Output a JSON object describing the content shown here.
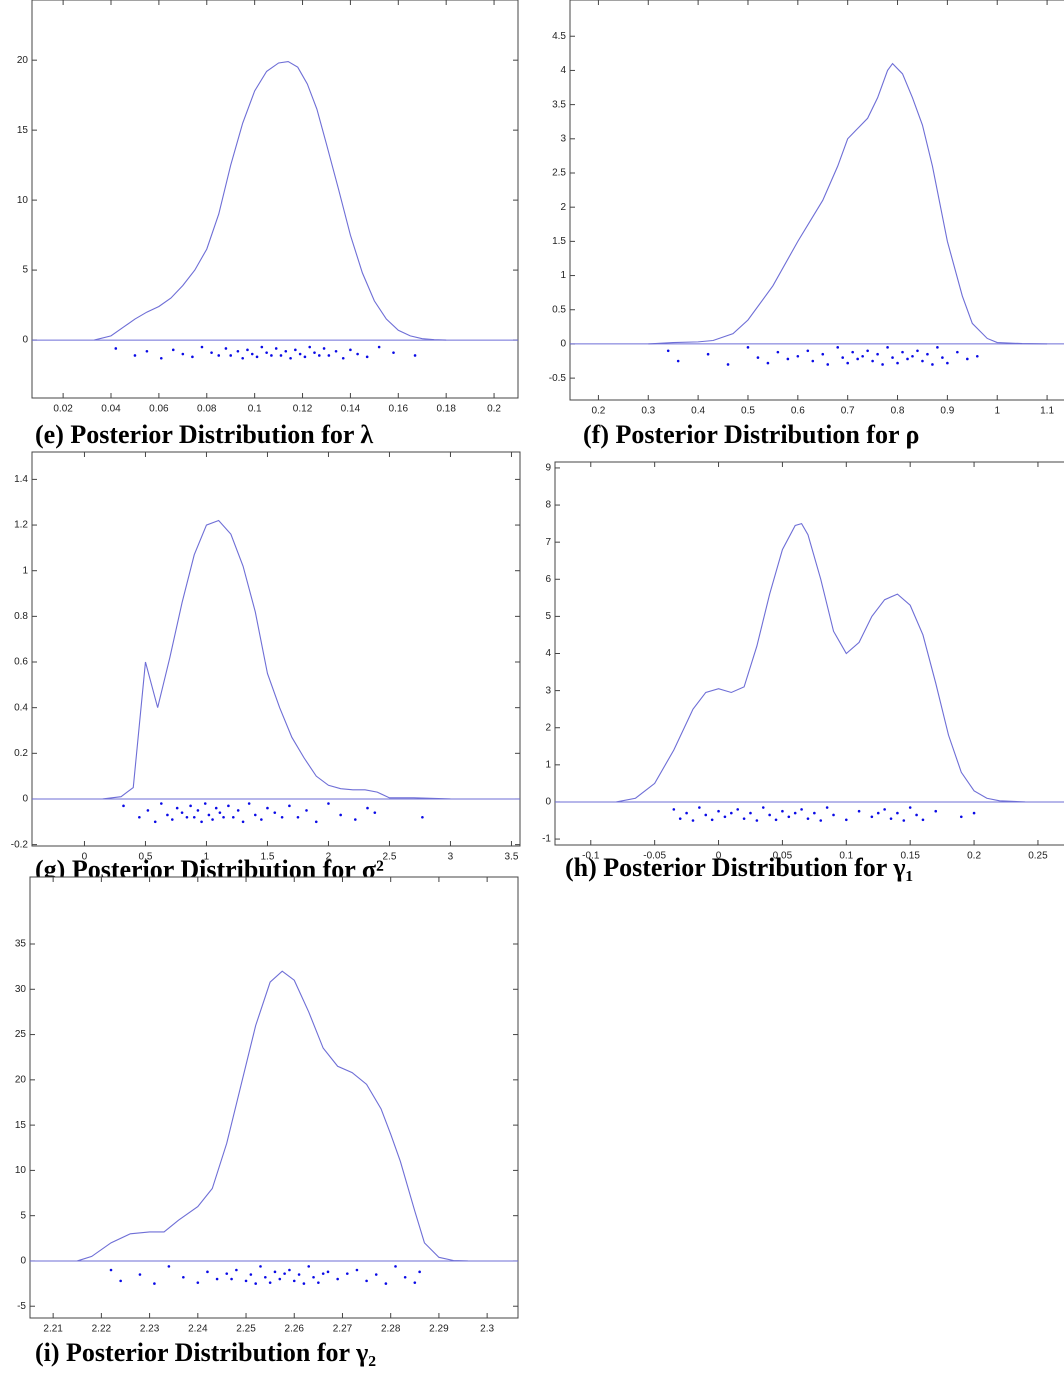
{
  "chart_data": [
    {
      "type": "density",
      "caption": "(e) Posterior Distribution for λ",
      "xlim": [
        0.007,
        0.21
      ],
      "ylim": [
        -4.14,
        24.3
      ],
      "xticks": [
        0.02,
        0.04,
        0.06,
        0.08,
        0.1,
        0.12,
        0.14,
        0.16,
        0.18,
        0.2
      ],
      "yticks": [
        0,
        5,
        10,
        15,
        20
      ],
      "color": "#6e6ed6",
      "point_color": "#0a0ae6",
      "x": [
        0.033,
        0.04,
        0.045,
        0.05,
        0.055,
        0.06,
        0.065,
        0.07,
        0.075,
        0.08,
        0.085,
        0.09,
        0.095,
        0.1,
        0.105,
        0.11,
        0.114,
        0.118,
        0.122,
        0.126,
        0.13,
        0.135,
        0.14,
        0.145,
        0.15,
        0.155,
        0.16,
        0.165,
        0.17,
        0.175,
        0.18
      ],
      "values": [
        0,
        0.3,
        0.9,
        1.5,
        2.0,
        2.4,
        3.0,
        3.9,
        5.0,
        6.5,
        9.0,
        12.5,
        15.5,
        17.8,
        19.2,
        19.8,
        19.9,
        19.5,
        18.3,
        16.5,
        14.0,
        10.8,
        7.5,
        4.8,
        2.8,
        1.5,
        0.7,
        0.3,
        0.1,
        0.03,
        0
      ],
      "points": {
        "x": [
          0.042,
          0.05,
          0.055,
          0.061,
          0.066,
          0.07,
          0.074,
          0.078,
          0.082,
          0.085,
          0.088,
          0.09,
          0.093,
          0.095,
          0.097,
          0.099,
          0.101,
          0.103,
          0.105,
          0.107,
          0.109,
          0.111,
          0.113,
          0.115,
          0.117,
          0.119,
          0.121,
          0.123,
          0.125,
          0.127,
          0.129,
          0.131,
          0.134,
          0.137,
          0.14,
          0.143,
          0.147,
          0.152,
          0.158,
          0.167
        ],
        "y": [
          -0.6,
          -1.1,
          -0.8,
          -1.3,
          -0.7,
          -1.0,
          -1.2,
          -0.5,
          -0.9,
          -1.1,
          -0.6,
          -1.1,
          -0.8,
          -1.3,
          -0.7,
          -1.0,
          -1.2,
          -0.5,
          -0.9,
          -1.1,
          -0.6,
          -1.1,
          -0.8,
          -1.3,
          -0.7,
          -1.0,
          -1.2,
          -0.5,
          -0.9,
          -1.1,
          -0.6,
          -1.1,
          -0.8,
          -1.3,
          -0.7,
          -1.0,
          -1.2,
          -0.5,
          -0.9,
          -1.1
        ]
      }
    },
    {
      "type": "density",
      "caption": "(f) Posterior Distribution for ρ",
      "xlim": [
        0.143,
        1.16
      ],
      "ylim": [
        -0.82,
        5.03
      ],
      "xticks": [
        0.2,
        0.3,
        0.4,
        0.5,
        0.6,
        0.7,
        0.8,
        0.9,
        1,
        1.1
      ],
      "yticks": [
        -0.5,
        0,
        0.5,
        1,
        1.5,
        2,
        2.5,
        3,
        3.5,
        4,
        4.5
      ],
      "color": "#6e6ed6",
      "point_color": "#0a0ae6",
      "x": [
        0.3,
        0.35,
        0.4,
        0.43,
        0.47,
        0.5,
        0.55,
        0.6,
        0.65,
        0.68,
        0.7,
        0.72,
        0.74,
        0.76,
        0.78,
        0.79,
        0.81,
        0.83,
        0.85,
        0.87,
        0.9,
        0.93,
        0.95,
        0.98,
        1.0,
        1.05,
        1.1
      ],
      "values": [
        0,
        0.02,
        0.03,
        0.05,
        0.15,
        0.35,
        0.85,
        1.5,
        2.1,
        2.6,
        3.0,
        3.15,
        3.3,
        3.6,
        4.0,
        4.1,
        3.95,
        3.6,
        3.2,
        2.6,
        1.5,
        0.7,
        0.3,
        0.08,
        0.02,
        0.005,
        0
      ],
      "points": {
        "x": [
          0.34,
          0.36,
          0.42,
          0.46,
          0.5,
          0.52,
          0.54,
          0.56,
          0.58,
          0.6,
          0.62,
          0.63,
          0.65,
          0.66,
          0.68,
          0.69,
          0.7,
          0.71,
          0.72,
          0.73,
          0.74,
          0.75,
          0.76,
          0.77,
          0.78,
          0.79,
          0.8,
          0.81,
          0.82,
          0.83,
          0.84,
          0.85,
          0.86,
          0.87,
          0.88,
          0.89,
          0.9,
          0.92,
          0.94,
          0.96
        ],
        "y": [
          -0.1,
          -0.25,
          -0.15,
          -0.3,
          -0.05,
          -0.2,
          -0.28,
          -0.12,
          -0.22,
          -0.18,
          -0.1,
          -0.25,
          -0.15,
          -0.3,
          -0.05,
          -0.2,
          -0.28,
          -0.12,
          -0.22,
          -0.18,
          -0.1,
          -0.25,
          -0.15,
          -0.3,
          -0.05,
          -0.2,
          -0.28,
          -0.12,
          -0.22,
          -0.18,
          -0.1,
          -0.25,
          -0.15,
          -0.3,
          -0.05,
          -0.2,
          -0.28,
          -0.12,
          -0.22,
          -0.18
        ]
      }
    },
    {
      "type": "density",
      "caption": "(g) Posterior Distribution for σ²",
      "xlim": [
        -0.43,
        3.57
      ],
      "ylim": [
        -0.206,
        1.52
      ],
      "xticks": [
        0,
        0.5,
        1,
        1.5,
        2,
        2.5,
        3,
        3.5
      ],
      "yticks": [
        -0.2,
        0,
        0.2,
        0.4,
        0.6,
        0.8,
        1,
        1.2,
        1.4
      ],
      "color": "#6e6ed6",
      "point_color": "#0a0ae6",
      "x": [
        0.15,
        0.3,
        0.4,
        0.5,
        0.6,
        0.7,
        0.8,
        0.9,
        1.0,
        1.1,
        1.2,
        1.3,
        1.4,
        1.5,
        1.6,
        1.7,
        1.8,
        1.9,
        2.0,
        2.1,
        2.2,
        2.3,
        2.4,
        2.5,
        2.7,
        3.0
      ],
      "values": [
        0,
        0.01,
        0.05,
        0.6,
        0.4,
        0.62,
        0.86,
        1.07,
        1.2,
        1.22,
        1.16,
        1.02,
        0.82,
        0.55,
        0.4,
        0.27,
        0.18,
        0.1,
        0.06,
        0.045,
        0.04,
        0.04,
        0.03,
        0.005,
        0.005,
        0
      ],
      "points": {
        "x": [
          0.32,
          0.45,
          0.52,
          0.58,
          0.63,
          0.68,
          0.72,
          0.76,
          0.8,
          0.84,
          0.87,
          0.9,
          0.93,
          0.96,
          0.99,
          1.02,
          1.05,
          1.08,
          1.11,
          1.14,
          1.18,
          1.22,
          1.26,
          1.3,
          1.35,
          1.4,
          1.45,
          1.5,
          1.56,
          1.62,
          1.68,
          1.75,
          1.82,
          1.9,
          2.0,
          2.1,
          2.22,
          2.32,
          2.38,
          2.77
        ],
        "y": [
          -0.03,
          -0.08,
          -0.05,
          -0.1,
          -0.02,
          -0.07,
          -0.09,
          -0.04,
          -0.06,
          -0.08,
          -0.03,
          -0.08,
          -0.05,
          -0.1,
          -0.02,
          -0.07,
          -0.09,
          -0.04,
          -0.06,
          -0.08,
          -0.03,
          -0.08,
          -0.05,
          -0.1,
          -0.02,
          -0.07,
          -0.09,
          -0.04,
          -0.06,
          -0.08,
          -0.03,
          -0.08,
          -0.05,
          -0.1,
          -0.02,
          -0.07,
          -0.09,
          -0.04,
          -0.06,
          -0.08
        ]
      }
    },
    {
      "type": "density",
      "caption": "(h) Posterior Distribution for γ₁",
      "xlim": [
        -0.128,
        0.279
      ],
      "ylim": [
        -1.16,
        9.16
      ],
      "xticks": [
        -0.1,
        -0.05,
        0,
        0.05,
        0.1,
        0.15,
        0.2,
        0.25
      ],
      "yticks": [
        -1,
        0,
        1,
        2,
        3,
        4,
        5,
        6,
        7,
        8,
        9
      ],
      "color": "#6e6ed6",
      "point_color": "#0a0ae6",
      "x": [
        -0.08,
        -0.065,
        -0.05,
        -0.035,
        -0.02,
        -0.01,
        0,
        0.01,
        0.02,
        0.03,
        0.04,
        0.05,
        0.06,
        0.065,
        0.07,
        0.08,
        0.09,
        0.1,
        0.11,
        0.12,
        0.13,
        0.14,
        0.15,
        0.16,
        0.17,
        0.18,
        0.19,
        0.2,
        0.21,
        0.22,
        0.24
      ],
      "values": [
        0,
        0.1,
        0.5,
        1.4,
        2.5,
        2.95,
        3.05,
        2.95,
        3.1,
        4.2,
        5.6,
        6.8,
        7.45,
        7.5,
        7.2,
        6.0,
        4.6,
        4.0,
        4.3,
        5.0,
        5.45,
        5.6,
        5.3,
        4.5,
        3.2,
        1.8,
        0.8,
        0.3,
        0.1,
        0.03,
        0
      ],
      "points": {
        "x": [
          -0.035,
          -0.03,
          -0.025,
          -0.02,
          -0.015,
          -0.01,
          -0.005,
          0,
          0.005,
          0.01,
          0.015,
          0.02,
          0.025,
          0.03,
          0.035,
          0.04,
          0.045,
          0.05,
          0.055,
          0.06,
          0.065,
          0.07,
          0.075,
          0.08,
          0.085,
          0.09,
          0.1,
          0.11,
          0.12,
          0.125,
          0.13,
          0.135,
          0.14,
          0.145,
          0.15,
          0.155,
          0.16,
          0.17,
          0.19,
          0.2
        ],
        "y": [
          -0.2,
          -0.45,
          -0.3,
          -0.5,
          -0.15,
          -0.35,
          -0.48,
          -0.25,
          -0.4,
          -0.3,
          -0.2,
          -0.45,
          -0.3,
          -0.5,
          -0.15,
          -0.35,
          -0.48,
          -0.25,
          -0.4,
          -0.3,
          -0.2,
          -0.45,
          -0.3,
          -0.5,
          -0.15,
          -0.35,
          -0.48,
          -0.25,
          -0.4,
          -0.3,
          -0.2,
          -0.45,
          -0.3,
          -0.5,
          -0.15,
          -0.35,
          -0.48,
          -0.25,
          -0.4,
          -0.3
        ]
      }
    },
    {
      "type": "density",
      "caption": "(i) Posterior Distribution for γ₂",
      "xlim": [
        2.2052,
        2.3064
      ],
      "ylim": [
        -6.3,
        42.4
      ],
      "xticks": [
        2.21,
        2.22,
        2.23,
        2.24,
        2.25,
        2.26,
        2.27,
        2.28,
        2.29,
        2.3
      ],
      "yticks": [
        -5,
        0,
        5,
        10,
        15,
        20,
        25,
        30,
        35
      ],
      "color": "#6e6ed6",
      "point_color": "#0a0ae6",
      "x": [
        2.215,
        2.218,
        2.222,
        2.226,
        2.23,
        2.233,
        2.236,
        2.24,
        2.243,
        2.246,
        2.249,
        2.252,
        2.255,
        2.2575,
        2.26,
        2.263,
        2.266,
        2.269,
        2.272,
        2.275,
        2.278,
        2.28,
        2.282,
        2.285,
        2.287,
        2.29,
        2.293,
        2.296
      ],
      "values": [
        0,
        0.5,
        2.0,
        3.0,
        3.2,
        3.2,
        4.5,
        6.0,
        8.0,
        13.0,
        19.5,
        26.0,
        30.8,
        32.0,
        31.0,
        27.5,
        23.5,
        21.5,
        20.8,
        19.5,
        16.8,
        14.0,
        11.0,
        5.5,
        2.0,
        0.4,
        0.05,
        0
      ],
      "points": {
        "x": [
          2.222,
          2.224,
          2.228,
          2.231,
          2.234,
          2.237,
          2.24,
          2.242,
          2.244,
          2.246,
          2.248,
          2.25,
          2.251,
          2.252,
          2.253,
          2.254,
          2.255,
          2.256,
          2.257,
          2.258,
          2.259,
          2.26,
          2.261,
          2.262,
          2.263,
          2.264,
          2.265,
          2.267,
          2.269,
          2.271,
          2.273,
          2.275,
          2.277,
          2.279,
          2.281,
          2.283,
          2.285,
          2.286,
          2.247,
          2.266
        ],
        "y": [
          -1,
          -2.2,
          -1.5,
          -2.5,
          -0.6,
          -1.8,
          -2.4,
          -1.2,
          -2,
          -1.4,
          -1,
          -2.2,
          -1.5,
          -2.5,
          -0.6,
          -1.8,
          -2.4,
          -1.2,
          -2,
          -1.4,
          -1,
          -2.2,
          -1.5,
          -2.5,
          -0.6,
          -1.8,
          -2.4,
          -1.2,
          -2,
          -1.4,
          -1,
          -2.2,
          -1.5,
          -2.5,
          -0.6,
          -1.8,
          -2.4,
          -1.2,
          -2,
          -1.4
        ]
      }
    }
  ]
}
